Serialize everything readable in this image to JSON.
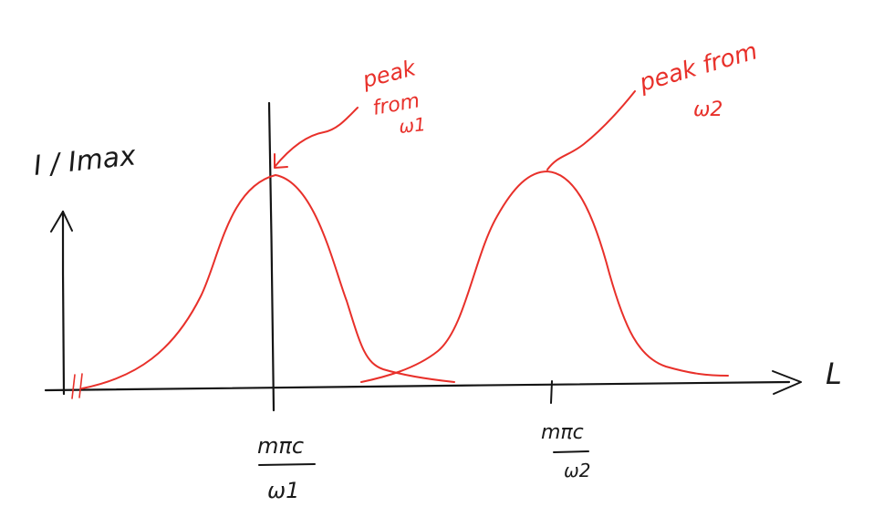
{
  "axes": {
    "y_label": "I / Imax",
    "x_label": "L"
  },
  "ticks": [
    {
      "numerator": "mπc",
      "denominator": "ω1"
    },
    {
      "numerator": "mπc",
      "denominator": "ω2"
    }
  ],
  "annotations": [
    {
      "lines": [
        "peak",
        "from",
        "ω1"
      ]
    },
    {
      "lines": [
        "peak from",
        "ω2"
      ]
    }
  ],
  "colors": {
    "ink": "#151515",
    "curve": "#e8302a"
  }
}
